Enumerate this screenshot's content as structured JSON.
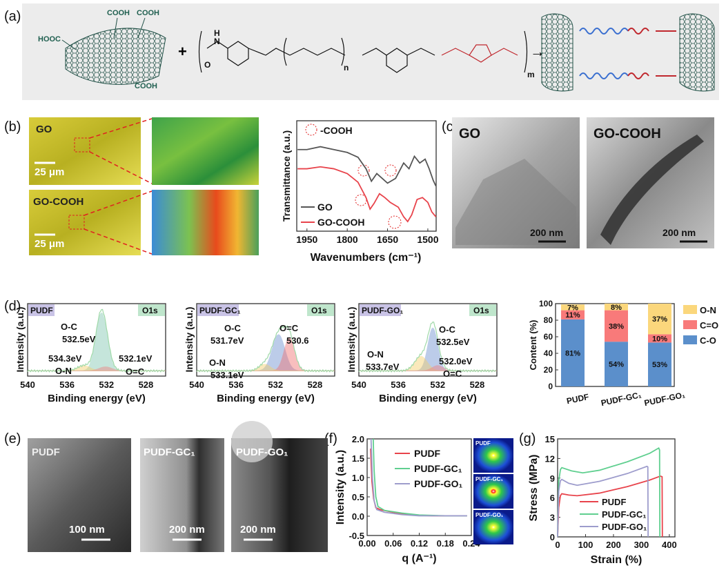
{
  "panel_labels": {
    "a": "(a)",
    "b": "(b)",
    "c": "(c)",
    "d": "(d)",
    "e": "(e)",
    "f": "(f)",
    "g": "(g)"
  },
  "panel_a": {
    "go_groups": [
      "HOOC",
      "COOH",
      "COOH",
      "COOH"
    ],
    "plus": "+",
    "arrow": "→",
    "repeat_n": "n",
    "repeat_m": "m",
    "atoms": {
      "H": "H",
      "N": "N",
      "O": "O"
    }
  },
  "panel_b": {
    "img_go_label": "GO",
    "img_gocooh_label": "GO-COOH",
    "scale_bar": "25 μm",
    "ftir": {
      "ylabel": "Transmittance (a.u.)",
      "xlabel": "Wavenumbers (cm⁻¹)",
      "annotation": "-COOH",
      "legend": [
        "GO",
        "GO-COOH"
      ]
    }
  },
  "panel_c": {
    "img_go_label": "GO",
    "img_gocooh_label": "GO-COOH",
    "scale_bar": "200 nm"
  },
  "panel_e": {
    "images": [
      {
        "label": "PUDF",
        "scale": "100 nm"
      },
      {
        "label": "PUDF-GC₁",
        "scale": "200 nm"
      },
      {
        "label": "PUDF-GO₁",
        "scale": "200 nm"
      }
    ]
  },
  "panel_f": {
    "patterns": [
      "PUDF",
      "PUDF-GC₁",
      "PUDF-GO₁"
    ]
  },
  "colors": {
    "pudf": "#e8434b",
    "gc1": "#5fcf8f",
    "go1": "#9d9ccc",
    "go": "#555555",
    "gocooh": "#e8434b",
    "co": "#5b8fcb",
    "ceo": "#f87a7a",
    "on": "#fbd77c"
  },
  "chart_data": [
    {
      "id": "ftir",
      "type": "line",
      "xlabel": "Wavenumbers (cm⁻¹)",
      "ylabel": "Transmittance (a.u.)",
      "xlim": [
        1988,
        1469
      ],
      "ylim": [
        0,
        1
      ],
      "xticks": [
        1950,
        1800,
        1650,
        1500
      ],
      "series": [
        {
          "name": "GO",
          "color": "#555555",
          "points": [
            [
              1985,
              0.8
            ],
            [
              1950,
              0.8
            ],
            [
              1900,
              0.83
            ],
            [
              1850,
              0.8
            ],
            [
              1800,
              0.77
            ],
            [
              1760,
              0.72
            ],
            [
              1730,
              0.6
            ],
            [
              1710,
              0.47
            ],
            [
              1690,
              0.55
            ],
            [
              1670,
              0.5
            ],
            [
              1650,
              0.45
            ],
            [
              1620,
              0.5
            ],
            [
              1590,
              0.66
            ],
            [
              1570,
              0.6
            ],
            [
              1550,
              0.73
            ],
            [
              1530,
              0.66
            ],
            [
              1510,
              0.7
            ],
            [
              1495,
              0.6
            ],
            [
              1480,
              0.48
            ],
            [
              1470,
              0.42
            ]
          ]
        },
        {
          "name": "GO-COOH",
          "color": "#e8434b",
          "points": [
            [
              1985,
              0.6
            ],
            [
              1950,
              0.6
            ],
            [
              1900,
              0.62
            ],
            [
              1850,
              0.6
            ],
            [
              1800,
              0.55
            ],
            [
              1760,
              0.46
            ],
            [
              1730,
              0.3
            ],
            [
              1715,
              0.18
            ],
            [
              1700,
              0.24
            ],
            [
              1680,
              0.34
            ],
            [
              1660,
              0.3
            ],
            [
              1640,
              0.25
            ],
            [
              1610,
              0.2
            ],
            [
              1590,
              0.1
            ],
            [
              1575,
              0.05
            ],
            [
              1560,
              0.12
            ],
            [
              1540,
              0.28
            ],
            [
              1520,
              0.3
            ],
            [
              1500,
              0.25
            ],
            [
              1485,
              0.15
            ],
            [
              1470,
              0.1
            ]
          ]
        }
      ]
    },
    {
      "id": "xps-pudf",
      "type": "line",
      "title": "PUDF",
      "tag": "O1s",
      "xlabel": "Binding energy (eV)",
      "ylabel": "Intensity (a.u.)",
      "xlim": [
        540,
        526
      ],
      "xticks": [
        540,
        536,
        532,
        528
      ],
      "peaks": [
        {
          "name": "O-C",
          "center": 532.5,
          "height": 0.88,
          "width": 0.8,
          "color": "#7fc6b0"
        },
        {
          "name": "O-N",
          "center": 534.3,
          "height": 0.08,
          "width": 0.9,
          "color": "#f5cf6b"
        },
        {
          "name": "O=C",
          "center": 532.1,
          "height": 0.06,
          "width": 0.9,
          "color": "#f08080"
        }
      ],
      "annotations": [
        "O-C",
        "532.5eV",
        "534.3eV",
        "O-N",
        "532.1eV",
        "O=C"
      ]
    },
    {
      "id": "xps-gc1",
      "type": "line",
      "title": "PUDF-GC₁",
      "tag": "O1s",
      "xlabel": "Binding energy (eV)",
      "ylabel": "Intensity (a.u.)",
      "xlim": [
        540,
        526
      ],
      "xticks": [
        540,
        536,
        532,
        528
      ],
      "peaks": [
        {
          "name": "O-C",
          "center": 531.7,
          "height": 0.55,
          "width": 0.9,
          "color": "#6c8fd0"
        },
        {
          "name": "O=C",
          "center": 530.6,
          "height": 0.5,
          "width": 0.75,
          "color": "#f07070"
        },
        {
          "name": "O-N",
          "center": 533.1,
          "height": 0.1,
          "width": 0.8,
          "color": "#f5cf6b"
        }
      ],
      "annotations": [
        "O-C",
        "531.7eV",
        "O=C",
        "530.6",
        "O-N",
        "533.1eV"
      ]
    },
    {
      "id": "xps-go1",
      "type": "line",
      "title": "PUDF-GO₁",
      "tag": "O1s",
      "xlabel": "Binding energy (eV)",
      "ylabel": "Intensity (a.u.)",
      "xlim": [
        540,
        526
      ],
      "xticks": [
        540,
        536,
        532,
        528
      ],
      "peaks": [
        {
          "name": "O-C",
          "center": 532.5,
          "height": 0.65,
          "width": 0.7,
          "color": "#6c8fd0"
        },
        {
          "name": "O-N",
          "center": 533.7,
          "height": 0.22,
          "width": 0.9,
          "color": "#f5cf6b"
        },
        {
          "name": "O=C",
          "center": 532.0,
          "height": 0.08,
          "width": 0.8,
          "color": "#f08080"
        }
      ],
      "annotations": [
        "O-C",
        "532.5eV",
        "O-N",
        "533.7eV",
        "532.0eV",
        "O=C"
      ]
    },
    {
      "id": "content-bar",
      "type": "bar",
      "stacked": true,
      "ylabel": "Content (%)",
      "ylim": [
        0,
        100
      ],
      "yticks": [
        0,
        20,
        40,
        60,
        80,
        100
      ],
      "categories": [
        "PUDF",
        "PUDF-GC₁",
        "PUDF-GO₁"
      ],
      "series": [
        {
          "name": "C-O",
          "color": "#5b8fcb",
          "values": [
            81,
            54,
            53
          ],
          "labels": [
            "81%",
            "54%",
            "53%"
          ]
        },
        {
          "name": "C=O",
          "color": "#f87a7a",
          "values": [
            11,
            38,
            10
          ],
          "labels": [
            "11%",
            "38%",
            "10%"
          ]
        },
        {
          "name": "O-N",
          "color": "#fbd77c",
          "values": [
            7,
            8,
            37
          ],
          "labels": [
            "7%",
            "8%",
            "37%"
          ]
        }
      ],
      "legend": [
        "O-N",
        "C=O",
        "C-O"
      ],
      "legend_position": "right"
    },
    {
      "id": "saxs",
      "type": "line",
      "xlabel": "q (A⁻¹)",
      "ylabel": "Intensity (a.u.)",
      "xlim": [
        0,
        0.24
      ],
      "ylim": [
        -0.5,
        2.0
      ],
      "xticks": [
        "0.00",
        "0.06",
        "0.12",
        "0.18",
        "0.24"
      ],
      "yticks": [
        "-0.5",
        "0.0",
        "0.5",
        "1.0",
        "1.5",
        "2.0"
      ],
      "series": [
        {
          "name": "PUDF",
          "color": "#e8434b",
          "points": [
            [
              0.008,
              1.75
            ],
            [
              0.011,
              0.9
            ],
            [
              0.015,
              0.45
            ],
            [
              0.02,
              0.22
            ],
            [
              0.03,
              0.17
            ],
            [
              0.06,
              0.1
            ],
            [
              0.1,
              0.03
            ],
            [
              0.15,
              0.01
            ],
            [
              0.23,
              0.01
            ]
          ]
        },
        {
          "name": "PUDF-GC₁",
          "color": "#5fcf8f",
          "points": [
            [
              0.014,
              2.0
            ],
            [
              0.016,
              1.2
            ],
            [
              0.02,
              0.5
            ],
            [
              0.025,
              0.25
            ],
            [
              0.04,
              0.15
            ],
            [
              0.08,
              0.08
            ],
            [
              0.12,
              0.03
            ],
            [
              0.18,
              0.01
            ],
            [
              0.23,
              0.01
            ]
          ]
        },
        {
          "name": "PUDF-GO₁",
          "color": "#9d9ccc",
          "points": [
            [
              0.009,
              2.0
            ],
            [
              0.012,
              1.0
            ],
            [
              0.016,
              0.4
            ],
            [
              0.022,
              0.17
            ],
            [
              0.04,
              0.1
            ],
            [
              0.08,
              0.04
            ],
            [
              0.12,
              0.01
            ],
            [
              0.23,
              0.01
            ]
          ]
        }
      ]
    },
    {
      "id": "stress-strain",
      "type": "line",
      "xlabel": "Strain (%)",
      "ylabel": "Stress (MPa)",
      "xlim": [
        0,
        420
      ],
      "ylim": [
        0,
        15
      ],
      "xticks": [
        "0",
        "100",
        "200",
        "300",
        "400"
      ],
      "yticks": [
        "0",
        "3",
        "6",
        "9",
        "12",
        "15"
      ],
      "series": [
        {
          "name": "PUDF",
          "color": "#e8434b",
          "points": [
            [
              0,
              0
            ],
            [
              4,
              4.5
            ],
            [
              10,
              6.3
            ],
            [
              15,
              6.6
            ],
            [
              40,
              6.4
            ],
            [
              70,
              6.3
            ],
            [
              150,
              6.7
            ],
            [
              250,
              7.7
            ],
            [
              330,
              8.7
            ],
            [
              368,
              9.3
            ],
            [
              374,
              9.2
            ],
            [
              375,
              0
            ]
          ]
        },
        {
          "name": "PUDF-GC₁",
          "color": "#5fcf8f",
          "points": [
            [
              0,
              0
            ],
            [
              4,
              8.5
            ],
            [
              10,
              10.3
            ],
            [
              15,
              10.6
            ],
            [
              50,
              10.1
            ],
            [
              90,
              9.8
            ],
            [
              150,
              10.2
            ],
            [
              250,
              11.5
            ],
            [
              330,
              12.8
            ],
            [
              362,
              13.6
            ],
            [
              365,
              13.3
            ],
            [
              366,
              0
            ]
          ]
        },
        {
          "name": "PUDF-GO₁",
          "color": "#9d9ccc",
          "points": [
            [
              0,
              0
            ],
            [
              4,
              7
            ],
            [
              10,
              8.6
            ],
            [
              15,
              8.8
            ],
            [
              40,
              8.2
            ],
            [
              70,
              7.9
            ],
            [
              150,
              8.5
            ],
            [
              250,
              9.7
            ],
            [
              320,
              10.8
            ],
            [
              323,
              10.7
            ],
            [
              324,
              0
            ]
          ]
        }
      ]
    }
  ]
}
